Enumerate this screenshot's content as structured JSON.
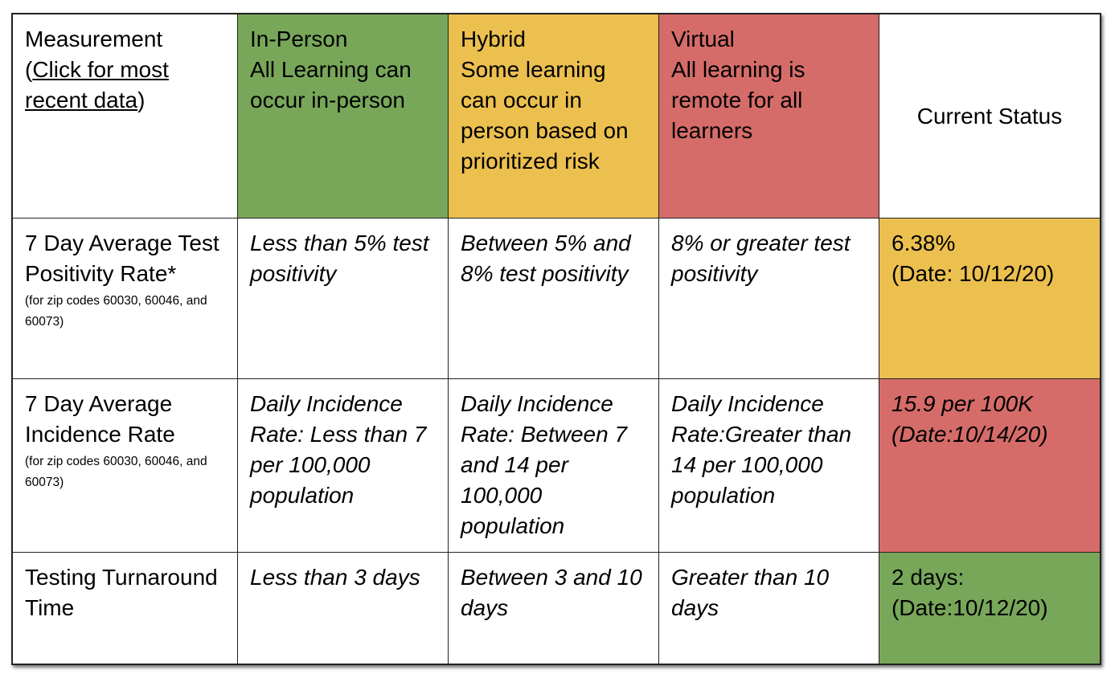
{
  "header": {
    "measurement_label": "Measurement",
    "measurement_paren_open": "(",
    "measurement_link": "Click for most recent data",
    "measurement_paren_close": ")",
    "in_person": {
      "title": "In-Person",
      "description": "All Learning can occur in-person"
    },
    "hybrid": {
      "title": "Hybrid",
      "description": "Some learning can occur in person based on prioritized risk"
    },
    "virtual": {
      "title": "Virtual",
      "description": "All learning is remote for all learners"
    },
    "current_status": "Current Status"
  },
  "rows": [
    {
      "measurement": "7 Day Average Test Positivity Rate*",
      "note": "(for zip codes 60030, 60046, and 60073)",
      "in_person": "Less than 5% test positivity",
      "hybrid": "Between 5% and 8% test positivity",
      "virtual": "8% or greater test positivity",
      "status_value": "6.38%",
      "status_date": "(Date: 10/12/20)",
      "status_color": "#ecc04f"
    },
    {
      "measurement": "7 Day Average Incidence Rate",
      "note": "(for zip codes 60030, 60046, and 60073)",
      "in_person": "Daily Incidence Rate: Less than 7 per 100,000 population",
      "hybrid": "Daily Incidence Rate: Between 7 and 14 per 100,000 population",
      "virtual": "Daily Incidence Rate:Greater than 14 per 100,000 population",
      "status_value": "15.9 per 100K",
      "status_date": "(Date:10/14/20)",
      "status_color": "#d56c69"
    },
    {
      "measurement": "Testing Turnaround Time",
      "in_person": "Less than 3 days",
      "hybrid": "Between 3 and 10 days",
      "virtual": "Greater than  10 days",
      "status_value": "2 days:",
      "status_date": "(Date:10/12/20)",
      "status_color": "#78a75a"
    }
  ],
  "colors": {
    "in_person": "#78a75a",
    "hybrid": "#ecc04f",
    "virtual": "#d56c69"
  }
}
